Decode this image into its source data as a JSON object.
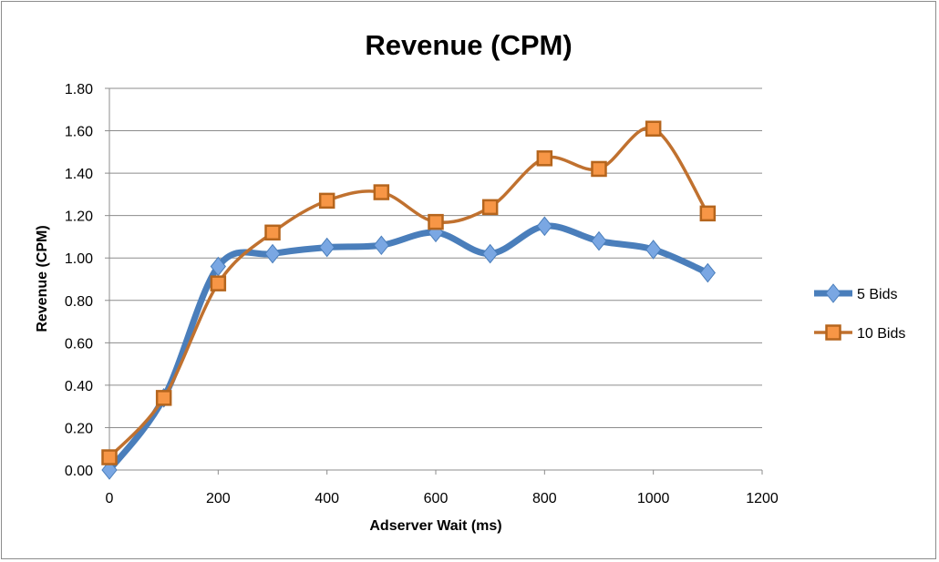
{
  "chart_data": {
    "type": "line",
    "title": "Revenue (CPM)",
    "xlabel": "Adserver Wait (ms)",
    "ylabel": "Revenue (CPM)",
    "xlim": [
      0,
      1200
    ],
    "ylim": [
      0,
      1.8
    ],
    "xticks": [
      "0",
      "200",
      "400",
      "600",
      "800",
      "1000",
      "1200"
    ],
    "yticks": [
      "0.00",
      "0.20",
      "0.40",
      "0.60",
      "0.80",
      "1.00",
      "1.20",
      "1.40",
      "1.60",
      "1.80"
    ],
    "grid": "horizontal",
    "smooth": true,
    "legend_position": "right",
    "x": [
      0,
      100,
      200,
      300,
      400,
      500,
      600,
      700,
      800,
      900,
      1000,
      1100
    ],
    "series": [
      {
        "name": "5 Bids",
        "color": "#4a7ebb",
        "marker": "diamond",
        "marker_color": "#7aa7e3",
        "values": [
          0.0,
          0.34,
          0.96,
          1.02,
          1.05,
          1.06,
          1.12,
          1.02,
          1.15,
          1.08,
          1.04,
          0.93
        ]
      },
      {
        "name": "10 Bids",
        "color": "#c0712f",
        "marker": "square",
        "marker_color": "#f79646",
        "values": [
          0.06,
          0.34,
          0.88,
          1.12,
          1.27,
          1.31,
          1.17,
          1.24,
          1.47,
          1.42,
          1.61,
          1.21
        ]
      }
    ]
  }
}
